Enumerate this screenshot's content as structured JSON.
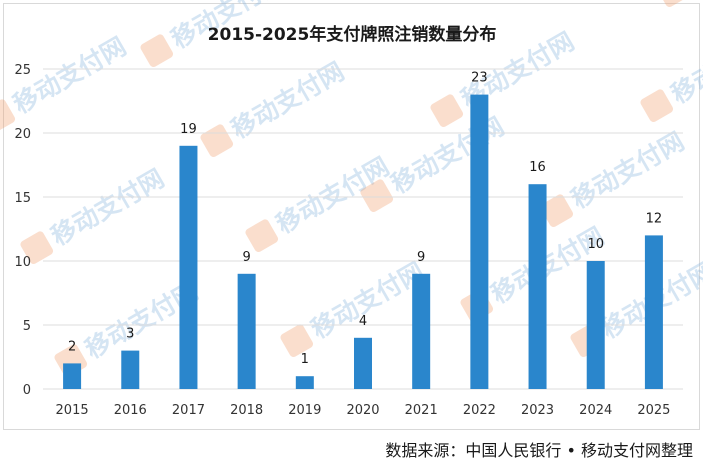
{
  "chart_data": {
    "type": "bar",
    "title": "2015-2025年支付牌照注销数量分布",
    "categories": [
      "2015",
      "2016",
      "2017",
      "2018",
      "2019",
      "2020",
      "2021",
      "2022",
      "2023",
      "2024",
      "2025"
    ],
    "values": [
      2,
      3,
      19,
      9,
      1,
      4,
      9,
      23,
      16,
      10,
      12
    ],
    "yticks": [
      "0",
      "5",
      "10",
      "15",
      "20",
      "25"
    ],
    "ylim": [
      0,
      25
    ],
    "grid": true,
    "bar_color": "#2a86cc"
  },
  "source": "数据来源：中国人民银行 • 移动支付网整理",
  "watermark": "移动支付网"
}
